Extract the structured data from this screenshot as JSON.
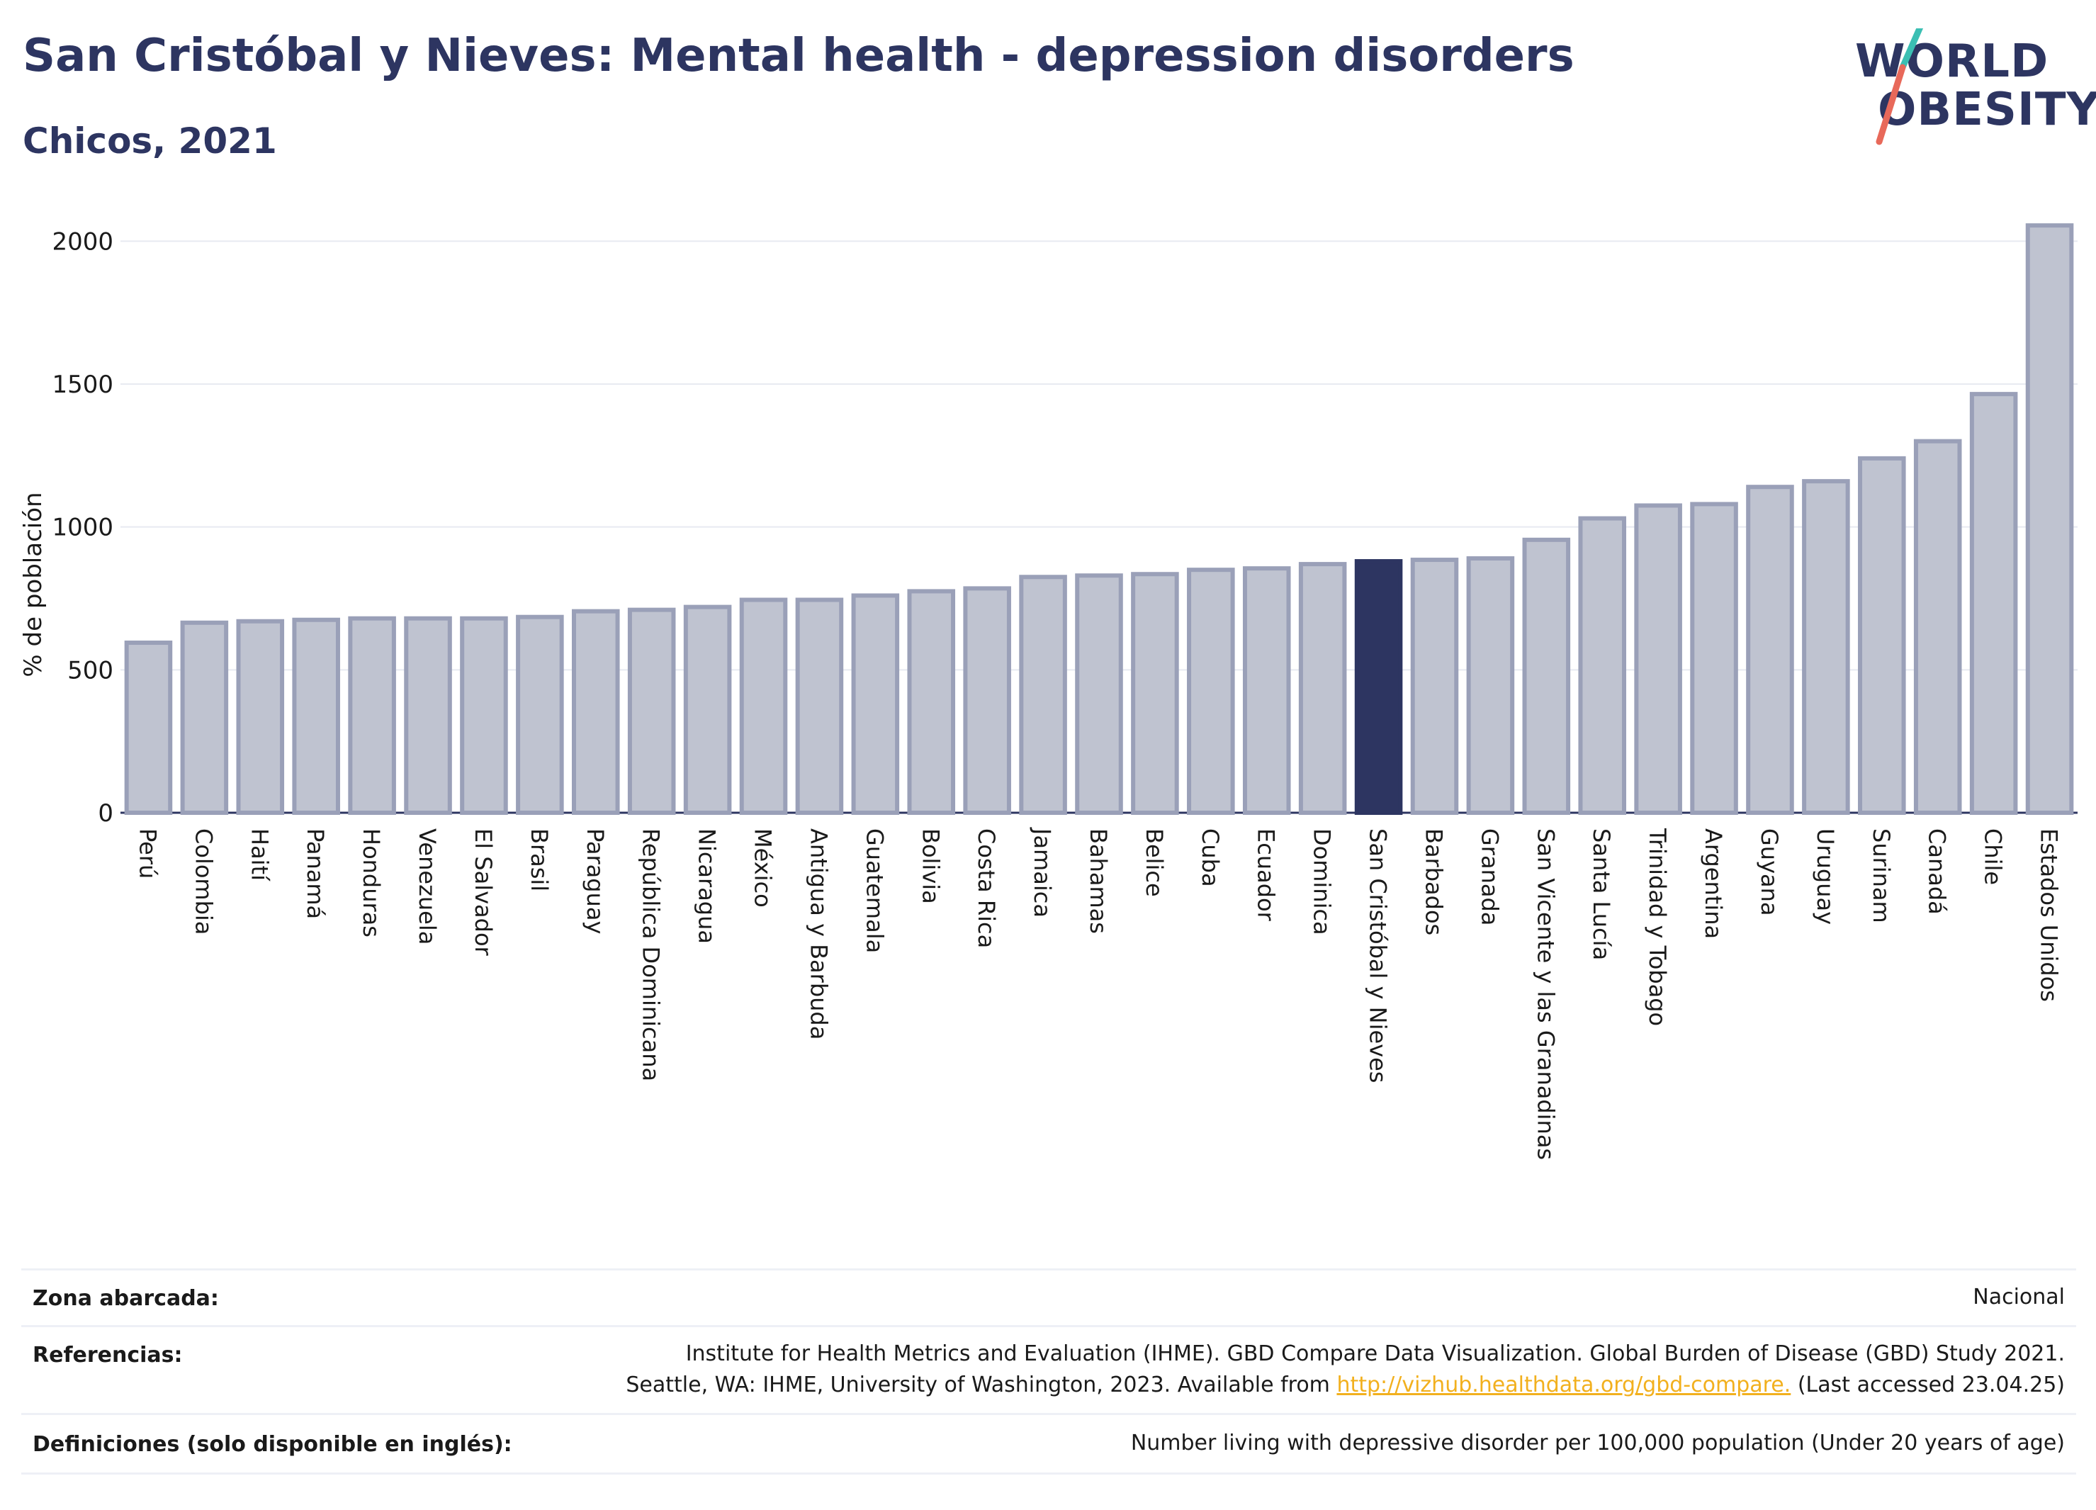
{
  "header": {
    "title": "San Cristóbal y Nieves: Mental health - depression disorders",
    "subtitle": "Chicos, 2021"
  },
  "logo": {
    "line1": "WORLD",
    "line2": "OBESITY"
  },
  "chart_data": {
    "type": "bar",
    "ylabel": "% de población",
    "xlabel": "",
    "ylim": [
      0,
      2100
    ],
    "yticks": [
      0,
      500,
      1000,
      1500,
      2000
    ],
    "grid": true,
    "highlight": "San Cristóbal y Nieves",
    "categories": [
      "Perú",
      "Colombia",
      "Haití",
      "Panamá",
      "Honduras",
      "Venezuela",
      "El Salvador",
      "Brasil",
      "Paraguay",
      "República Dominicana",
      "Nicaragua",
      "México",
      "Antigua y Barbuda",
      "Guatemala",
      "Bolivia",
      "Costa Rica",
      "Jamaica",
      "Bahamas",
      "Belice",
      "Cuba",
      "Ecuador",
      "Dominica",
      "San Cristóbal y Nieves",
      "Barbados",
      "Granada",
      "San Vicente y las Granadinas",
      "Santa Lucía",
      "Trinidad y Tobago",
      "Argentina",
      "Guyana",
      "Uruguay",
      "Surinam",
      "Canadá",
      "Chile",
      "Estados Unidos"
    ],
    "values": [
      595,
      665,
      670,
      675,
      680,
      680,
      680,
      685,
      705,
      710,
      720,
      745,
      745,
      760,
      775,
      785,
      825,
      830,
      835,
      850,
      855,
      870,
      880,
      885,
      890,
      955,
      1030,
      1075,
      1080,
      1140,
      1160,
      1240,
      1300,
      1465,
      2055
    ]
  },
  "colors": {
    "bar": "#bfc3d0",
    "bar_stroke": "#9aa0b8",
    "highlight": "#2d3561",
    "title": "#2d3561",
    "logo_slash_top": "#3bbfb3",
    "logo_slash_bottom": "#e8695a",
    "link": "#f2b01e"
  },
  "footer": {
    "zone_label": "Zona abarcada:",
    "zone_value": "Nacional",
    "refs_label": "Referencias:",
    "refs_line1": "Institute for Health Metrics and Evaluation (IHME). GBD Compare Data Visualization. Global Burden of Disease (GBD) Study 2021.",
    "refs_line2_pre": "Seattle, WA: IHME, University of Washington, 2023. Available from ",
    "refs_link": "http://vizhub.healthdata.org/gbd-compare.",
    "refs_line2_post": " (Last accessed 23.04.25)",
    "defs_label": "Definiciones (solo disponible en inglés):",
    "defs_value": "Number living with depressive disorder per 100,000 population (Under 20 years of age)"
  }
}
